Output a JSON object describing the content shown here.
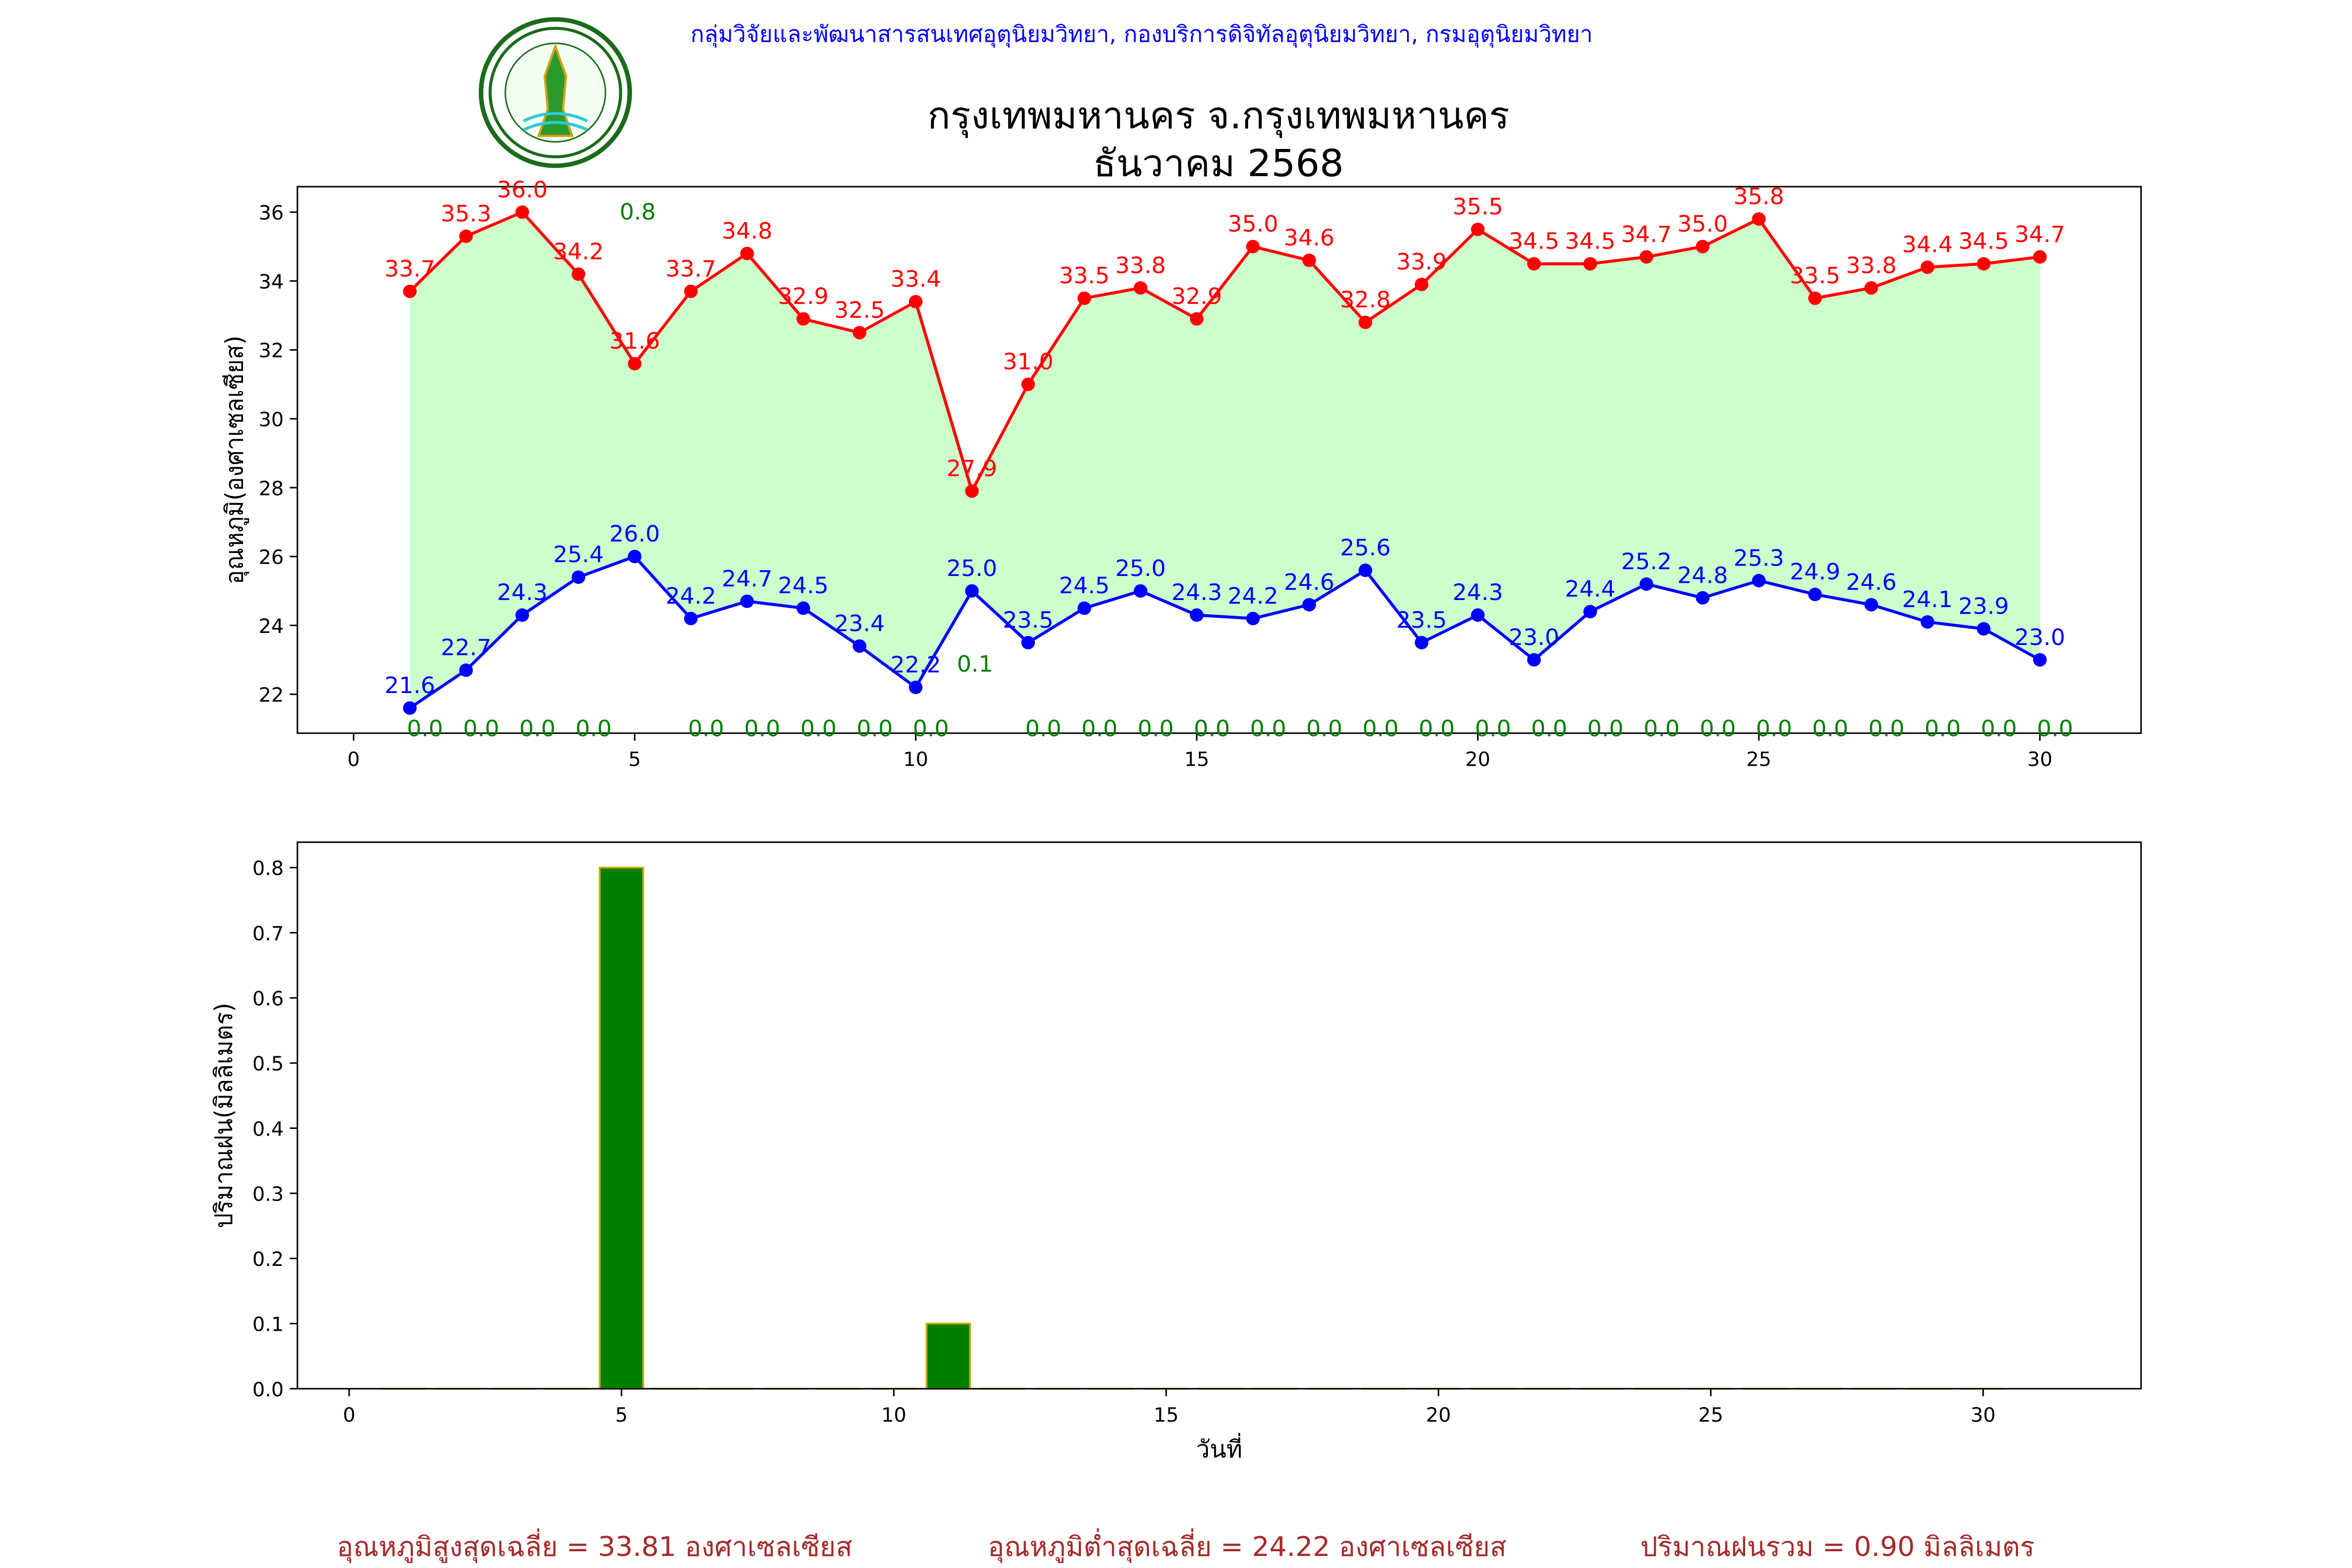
{
  "header": {
    "org": "กลุ่มวิจัยและพัฒนาสารสนเทศอุตุนิยมวิทยา, กองบริการดิจิทัลอุตุนิยมวิทยา, กรมอุตุนิยมวิทยา",
    "logo_text": "กรมอุตุนิยมวิทยา METEOROLOGICAL DEPARTMENT"
  },
  "title": {
    "line1": "กรุงเทพมหานคร จ.กรุงเทพมหานคร",
    "line2": "ธันวาคม 2568"
  },
  "colors": {
    "max": "#ff0000",
    "min": "#0000ff",
    "fill": "#ccffcc",
    "rain": "#008000",
    "bar_edge": "#ccaa00",
    "footer": "#a52a2a"
  },
  "chart_data": [
    {
      "type": "line",
      "title": "",
      "xlabel": "",
      "ylabel": "อุณหภูมิ(องศาเซลเซียส)",
      "x": [
        1,
        2,
        3,
        4,
        5,
        6,
        7,
        8,
        9,
        10,
        11,
        12,
        13,
        14,
        15,
        16,
        17,
        18,
        19,
        20,
        21,
        22,
        23,
        24,
        25,
        26,
        27,
        28,
        29,
        30
      ],
      "xlim": [
        -1,
        31.8
      ],
      "ylim": [
        20.87,
        36.74
      ],
      "xticks": [
        "0",
        "5",
        "10",
        "15",
        "20",
        "25",
        "30"
      ],
      "yticks": [
        "22",
        "24",
        "26",
        "28",
        "30",
        "32",
        "34",
        "36"
      ],
      "grid": false,
      "series": [
        {
          "name": "max",
          "values": [
            33.7,
            35.3,
            36.0,
            34.2,
            31.6,
            33.7,
            34.8,
            32.9,
            32.5,
            33.4,
            27.9,
            31.0,
            33.5,
            33.8,
            32.9,
            35.0,
            34.6,
            32.8,
            33.9,
            35.5,
            34.5,
            34.5,
            34.7,
            35.0,
            35.8,
            33.5,
            33.8,
            34.4,
            34.5,
            34.7
          ],
          "labels": [
            "33.7",
            "35.3",
            "36.0",
            "34.2",
            "31.6",
            "33.7",
            "34.8",
            "32.9",
            "32.5",
            "33.4",
            "27.9",
            "31.0",
            "33.5",
            "33.8",
            "32.9",
            "35.0",
            "34.6",
            "32.8",
            "33.9",
            "35.5",
            "34.5",
            "34.5",
            "34.7",
            "35.0",
            "35.8",
            "33.5",
            "33.8",
            "34.4",
            "34.5",
            "34.7"
          ]
        },
        {
          "name": "min",
          "values": [
            21.6,
            22.7,
            24.3,
            25.4,
            26.0,
            24.2,
            24.7,
            24.5,
            23.4,
            22.2,
            25.0,
            23.5,
            24.5,
            25.0,
            24.3,
            24.2,
            24.6,
            25.6,
            23.5,
            24.3,
            23.0,
            24.4,
            25.2,
            24.8,
            25.3,
            24.9,
            24.6,
            24.1,
            23.9,
            23.0
          ],
          "labels": [
            "21.6",
            "22.7",
            "24.3",
            "25.4",
            "26.0",
            "24.2",
            "24.7",
            "24.5",
            "23.4",
            "22.2",
            "25.0",
            "23.5",
            "24.5",
            "25.0",
            "24.3",
            "24.2",
            "24.6",
            "25.6",
            "23.5",
            "24.3",
            "23.0",
            "24.4",
            "25.2",
            "24.8",
            "25.3",
            "24.9",
            "24.6",
            "24.1",
            "23.9",
            "23.0"
          ]
        },
        {
          "name": "rain_labels",
          "values": [
            0,
            0,
            0,
            0,
            0.8,
            0,
            0,
            0,
            0,
            0,
            0.1,
            0,
            0,
            0,
            0,
            0,
            0,
            0,
            0,
            0,
            0,
            0,
            0,
            0,
            0,
            0,
            0,
            0,
            0,
            0
          ],
          "labels": [
            "0.0",
            "0.0",
            "0.0",
            "0.0",
            "0.8",
            "0.0",
            "0.0",
            "0.0",
            "0.0",
            "0.0",
            "0.1",
            "0.0",
            "0.0",
            "0.0",
            "0.0",
            "0.0",
            "0.0",
            "0.0",
            "0.0",
            "0.0",
            "0.0",
            "0.0",
            "0.0",
            "0.0",
            "0.0",
            "0.0",
            "0.0",
            "0.0",
            "0.0",
            "0.0"
          ]
        }
      ]
    },
    {
      "type": "bar",
      "title": "",
      "xlabel": "วันที่",
      "ylabel": "ปริมาณฝน(มิลลิเมตร)",
      "x": [
        1,
        2,
        3,
        4,
        5,
        6,
        7,
        8,
        9,
        10,
        11,
        12,
        13,
        14,
        15,
        16,
        17,
        18,
        19,
        20,
        21,
        22,
        23,
        24,
        25,
        26,
        27,
        28,
        29,
        30
      ],
      "values": [
        0,
        0,
        0,
        0,
        0.8,
        0,
        0,
        0,
        0,
        0,
        0.1,
        0,
        0,
        0,
        0,
        0,
        0,
        0,
        0,
        0,
        0,
        0,
        0,
        0,
        0,
        0,
        0,
        0,
        0,
        0
      ],
      "xlim": [
        -0.95,
        32.9
      ],
      "ylim": [
        0,
        0.839
      ],
      "xticks": [
        "0",
        "5",
        "10",
        "15",
        "20",
        "25",
        "30"
      ],
      "yticks": [
        "0.0",
        "0.1",
        "0.2",
        "0.3",
        "0.4",
        "0.5",
        "0.6",
        "0.7",
        "0.8"
      ],
      "grid": false
    }
  ],
  "footer": {
    "avg_max": "อุณหภูมิสูงสุดเฉลี่ย = 33.81 องศาเซลเซียส",
    "avg_min": "อุณหภูมิต่ำสุดเฉลี่ย = 24.22 องศาเซลเซียส",
    "total_rain": "ปริมาณฝนรวม = 0.90 มิลลิเมตร"
  }
}
